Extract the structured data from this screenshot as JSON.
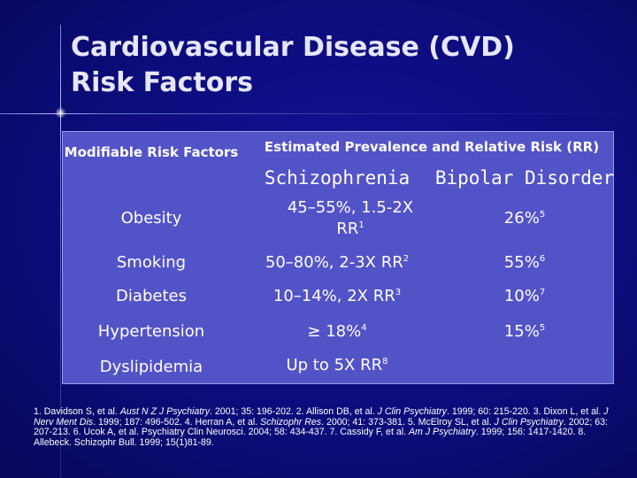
{
  "title": {
    "line1": "Cardiovascular Disease (CVD)",
    "line2": "Risk Factors"
  },
  "table": {
    "header": {
      "modifiable": "Modifiable Risk Factors",
      "estimated": "Estimated Prevalence and Relative Risk (RR)",
      "schizophrenia": "Schizophrenia",
      "bipolar": "Bipolar Disorder"
    },
    "rows": [
      {
        "factor": "Obesity",
        "schizophrenia": "45–55%, 1.5-2X RR",
        "schizophrenia_ref": "1",
        "bipolar": "26%",
        "bipolar_ref": "5"
      },
      {
        "factor": "Smoking",
        "schizophrenia": "50–80%, 2-3X RR",
        "schizophrenia_ref": "2",
        "bipolar": "55%",
        "bipolar_ref": "6"
      },
      {
        "factor": "Diabetes",
        "schizophrenia": "10–14%, 2X RR",
        "schizophrenia_ref": "3",
        "bipolar": "10%",
        "bipolar_ref": "7"
      },
      {
        "factor": "Hypertension",
        "schizophrenia": "≥ 18%",
        "schizophrenia_ref": "4",
        "bipolar": "15%",
        "bipolar_ref": "5"
      },
      {
        "factor": "Dyslipidemia",
        "schizophrenia": "Up to 5X RR",
        "schizophrenia_ref": "8",
        "bipolar": "",
        "bipolar_ref": ""
      }
    ]
  },
  "references": {
    "r1a": "1. Davidson S, et al. ",
    "r1j": "Aust N Z J Psychiatry",
    "r1b": ". 2001; 35: 196-202. 2. Allison DB, et al. ",
    "r2j": "J Clin Psychiatry",
    "r2b": ". 1999; 60: 215-220. 3. Dixon L, et al. ",
    "r3j": "J Nerv Ment Dis",
    "r3b": ". 1999; 187: 496-502. 4. Herran A, et al. ",
    "r4j": "Schizophr Res",
    "r4b": ". 2000; 41: 373-381. 5. McElroy SL, et al. ",
    "r5j": "J Clin Psychiatry",
    "r5b": ". 2002; 63: 207-213. 6. Ucok A, et al. Psychiatry Clin Neurosci. 2004; 58: 434-437. 7. Cassidy F, et al. ",
    "r7j": "Am J Psychiatry",
    "r7b": ". 1999; 156: 1417-1420. 8. Allebeck. Schizophr Bull. 1999; 15(1)81-89."
  }
}
